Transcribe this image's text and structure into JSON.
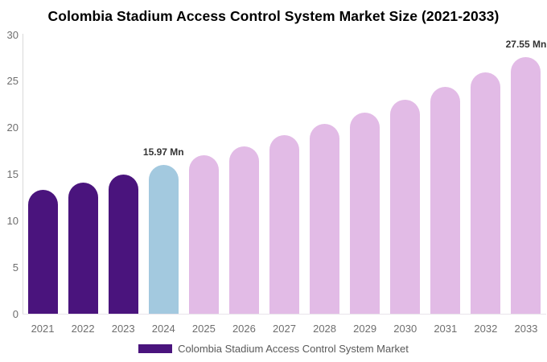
{
  "chart_data": {
    "type": "bar",
    "title": "Colombia Stadium Access Control System Market Size (2021-2033)",
    "xlabel": "",
    "ylabel": "",
    "unit": "Mn",
    "categories": [
      "2021",
      "2022",
      "2023",
      "2024",
      "2025",
      "2026",
      "2027",
      "2028",
      "2029",
      "2030",
      "2031",
      "2032",
      "2033"
    ],
    "values": [
      13.3,
      14.1,
      15.0,
      15.97,
      17.0,
      18.0,
      19.2,
      20.4,
      21.6,
      23.0,
      24.4,
      25.9,
      27.55
    ],
    "bar_colors": [
      "#4A147D",
      "#4A147D",
      "#4A147D",
      "#A3C9DF",
      "#E2BBE6",
      "#E2BBE6",
      "#E2BBE6",
      "#E2BBE6",
      "#E2BBE6",
      "#E2BBE6",
      "#E2BBE6",
      "#E2BBE6",
      "#E2BBE6"
    ],
    "segment_colors": {
      "historical_2021_2023": "#4A147D",
      "base_year_2024": "#A3C9DF",
      "forecast_2025_2033": "#E2BBE6"
    },
    "annotations": [
      {
        "category": "2024",
        "text": "15.97 Mn"
      },
      {
        "category": "2033",
        "text": "27.55 Mn"
      }
    ],
    "ylim": [
      0,
      30
    ],
    "yticks": [
      0,
      5,
      10,
      15,
      20,
      25,
      30
    ],
    "grid": false,
    "legend": {
      "position": "bottom-center",
      "items": [
        {
          "label": "Colombia Stadium Access Control System Market",
          "color": "#4A147D"
        }
      ]
    }
  }
}
